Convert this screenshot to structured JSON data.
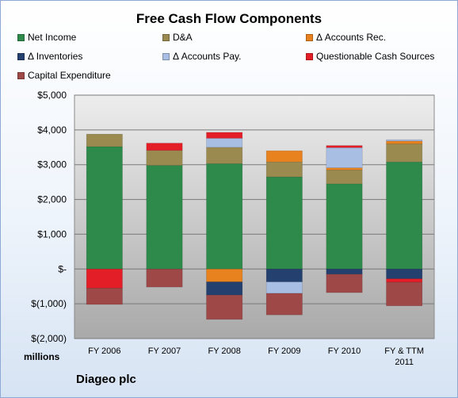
{
  "chart_data": {
    "type": "bar",
    "stacked": true,
    "title": "Free Cash Flow Components",
    "unit_label": "millions",
    "company": "Diageo plc",
    "categories": [
      [
        "FY 2006"
      ],
      [
        "FY 2007"
      ],
      [
        "FY 2008"
      ],
      [
        "FY 2009"
      ],
      [
        "FY 2010"
      ],
      [
        "FY & TTM",
        "2011"
      ]
    ],
    "ylim": [
      -2000,
      5000
    ],
    "yticks": [
      -2000,
      -1000,
      0,
      1000,
      2000,
      3000,
      4000,
      5000
    ],
    "ytick_labels": [
      "$(2,000)",
      "$(1,000)",
      "$-",
      "$1,000",
      "$2,000",
      "$3,000",
      "$4,000",
      "$5,000"
    ],
    "grid": true,
    "legend_position": "top",
    "series": [
      {
        "name": "Net Income",
        "color": "#2e8a4a",
        "values": [
          3520,
          2980,
          3030,
          2650,
          2450,
          3080
        ]
      },
      {
        "name": "D&A",
        "color": "#9a8a50",
        "values": [
          360,
          430,
          470,
          430,
          400,
          520
        ]
      },
      {
        "name": "Δ Accounts Rec.",
        "color": "#e8821e",
        "values": [
          0,
          0,
          -370,
          320,
          60,
          80
        ]
      },
      {
        "name": "Δ Inventories",
        "color": "#24406e",
        "values": [
          0,
          0,
          -380,
          -370,
          -150,
          -280
        ]
      },
      {
        "name": "Δ Accounts Pay.",
        "color": "#a8bee2",
        "values": [
          0,
          0,
          260,
          -330,
          580,
          40
        ]
      },
      {
        "name": "Questionable Cash Sources",
        "color": "#e31e26",
        "values": [
          -550,
          210,
          170,
          0,
          60,
          -100
        ]
      },
      {
        "name": "Capital Expenditure",
        "color": "#9e4848",
        "values": [
          -470,
          -520,
          -700,
          -620,
          -530,
          -680
        ]
      }
    ]
  }
}
